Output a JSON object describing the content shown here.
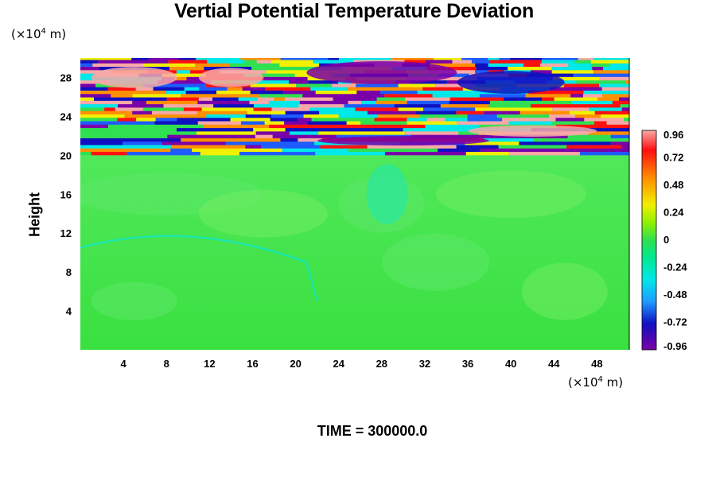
{
  "title": "Vertial Potential Temperature Deviation",
  "y_unit": {
    "prefix": "(×10",
    "exp": "4",
    "suffix": " m)"
  },
  "x_unit": {
    "prefix": "(×10",
    "exp": "4",
    "suffix": " m)"
  },
  "time_label": "TIME = 300000.0",
  "chart_data": {
    "type": "heatmap",
    "title": "Vertial Potential Temperature Deviation",
    "xlabel": "",
    "ylabel": "Height",
    "x_unit": "×10^4 m",
    "y_unit": "×10^4 m",
    "xlim": [
      0,
      51
    ],
    "ylim": [
      0,
      30
    ],
    "xticks": [
      4,
      8,
      12,
      16,
      20,
      24,
      28,
      32,
      36,
      40,
      44,
      48
    ],
    "yticks": [
      4,
      8,
      12,
      16,
      20,
      24,
      28
    ],
    "colorbar": {
      "range": [
        -0.96,
        0.96
      ],
      "tick_labels": [
        "0.96",
        "0.72",
        "0.48",
        "0.24",
        "0",
        "-0.24",
        "-0.48",
        "-0.72",
        "-0.96"
      ],
      "tick_values": [
        0.96,
        0.72,
        0.48,
        0.24,
        0,
        -0.24,
        -0.48,
        -0.72,
        -0.96
      ]
    },
    "regions": [
      {
        "height_range": [
          0,
          19.8
        ],
        "value": 0.0,
        "description": "near zero"
      },
      {
        "height_range": [
          20,
          30
        ],
        "value_range": [
          -0.96,
          0.96
        ],
        "description": "strongly alternating bands"
      }
    ],
    "caption": "TIME = 300000.0"
  },
  "colors": {
    "neg_max": "#7a00a8",
    "neg_dark": "#1010c0",
    "neg": "#1e5cff",
    "cyan": "#00e8e8",
    "neutral": "#30e050",
    "pos_yellow": "#f0f000",
    "pos_orange": "#ff9000",
    "pos_red": "#ff1010",
    "pos_max": "#f8a8a8"
  }
}
